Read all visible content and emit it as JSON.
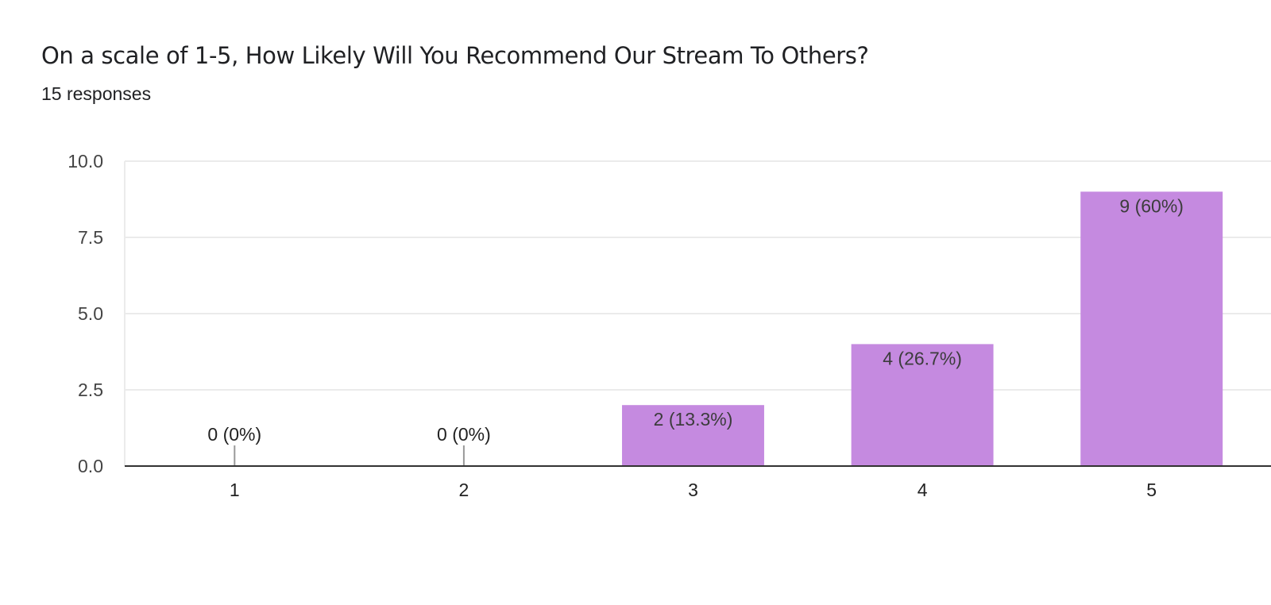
{
  "header": {
    "title": "On a scale of 1-5, How Likely Will You Recommend Our Stream To Others?",
    "responses": "15 responses"
  },
  "colors": {
    "bar": "#c58ae0",
    "grid": "#ebebeb",
    "axis": "#333333",
    "tick_text": "#444444",
    "label_text": "#3c3c3c"
  },
  "chart_data": {
    "type": "bar",
    "categories": [
      "1",
      "2",
      "3",
      "4",
      "5"
    ],
    "values": [
      0,
      0,
      2,
      4,
      9
    ],
    "data_labels": [
      "0 (0%)",
      "0 (0%)",
      "2 (13.3%)",
      "4 (26.7%)",
      "9 (60%)"
    ],
    "title": "On a scale of 1-5, How Likely Will You Recommend Our Stream To Others?",
    "subtitle": "15 responses",
    "xlabel": "",
    "ylabel": "",
    "ylim": [
      0,
      10
    ],
    "yticks": [
      "0.0",
      "2.5",
      "5.0",
      "7.5",
      "10.0"
    ],
    "ytick_values": [
      0,
      2.5,
      5,
      7.5,
      10
    ],
    "grid": true,
    "legend": "none"
  }
}
